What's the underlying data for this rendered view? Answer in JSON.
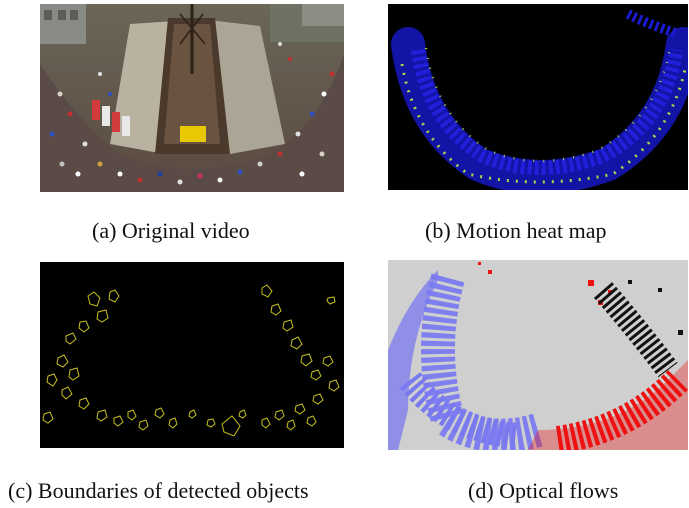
{
  "figure": {
    "panels": [
      {
        "id": "a",
        "caption": "(a) Original video",
        "image": "aerial-marathon-runners-around-ship"
      },
      {
        "id": "b",
        "caption": "(b) Motion heat map",
        "image": "motion-heat-map"
      },
      {
        "id": "c",
        "caption": "(c) Boundaries of detected objects",
        "image": "object-boundary-outlines"
      },
      {
        "id": "d",
        "caption": "(d) Optical flows",
        "image": "optical-flow-field"
      }
    ],
    "colors": {
      "heat_low": "#1a1ad0",
      "heat_high": "#b8f040",
      "boundary": "#c8c020",
      "flow_left": "#7a7af0",
      "flow_right": "#ee1111",
      "flow_dark": "#111111",
      "flow_background": "#cfcfcf"
    }
  }
}
